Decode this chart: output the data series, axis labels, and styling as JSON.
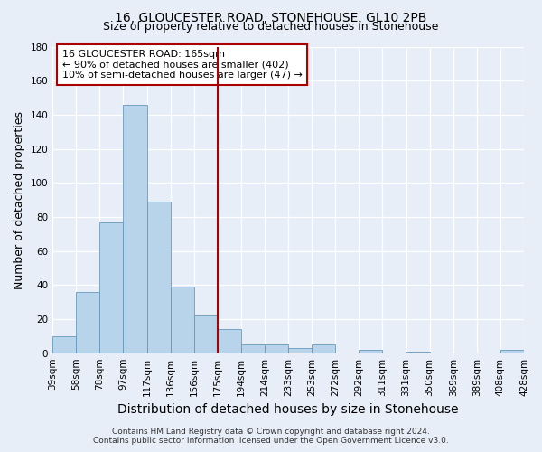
{
  "title": "16, GLOUCESTER ROAD, STONEHOUSE, GL10 2PB",
  "subtitle": "Size of property relative to detached houses in Stonehouse",
  "xlabel": "Distribution of detached houses by size in Stonehouse",
  "ylabel": "Number of detached properties",
  "bin_labels": [
    "39sqm",
    "58sqm",
    "78sqm",
    "97sqm",
    "117sqm",
    "136sqm",
    "156sqm",
    "175sqm",
    "194sqm",
    "214sqm",
    "233sqm",
    "253sqm",
    "272sqm",
    "292sqm",
    "311sqm",
    "331sqm",
    "350sqm",
    "369sqm",
    "389sqm",
    "408sqm",
    "428sqm"
  ],
  "bar_values": [
    10,
    36,
    77,
    146,
    89,
    39,
    22,
    14,
    5,
    5,
    3,
    5,
    0,
    2,
    0,
    1,
    0,
    0,
    0,
    2
  ],
  "bar_color": "#b8d4ea",
  "bar_edge_color": "#6699bb",
  "vline_x_index": 6,
  "vline_color": "#aa0000",
  "ylim": [
    0,
    180
  ],
  "yticks": [
    0,
    20,
    40,
    60,
    80,
    100,
    120,
    140,
    160,
    180
  ],
  "annotation_title": "16 GLOUCESTER ROAD: 165sqm",
  "annotation_line1": "← 90% of detached houses are smaller (402)",
  "annotation_line2": "10% of semi-detached houses are larger (47) →",
  "annotation_box_facecolor": "#ffffff",
  "annotation_box_edgecolor": "#aa0000",
  "footer_line1": "Contains HM Land Registry data © Crown copyright and database right 2024.",
  "footer_line2": "Contains public sector information licensed under the Open Government Licence v3.0.",
  "bg_color": "#e8eef8",
  "plot_bg_color": "#e8eef8",
  "title_fontsize": 10,
  "subtitle_fontsize": 9,
  "axis_label_fontsize": 9,
  "tick_fontsize": 7.5,
  "footer_fontsize": 6.5,
  "annotation_fontsize": 8
}
